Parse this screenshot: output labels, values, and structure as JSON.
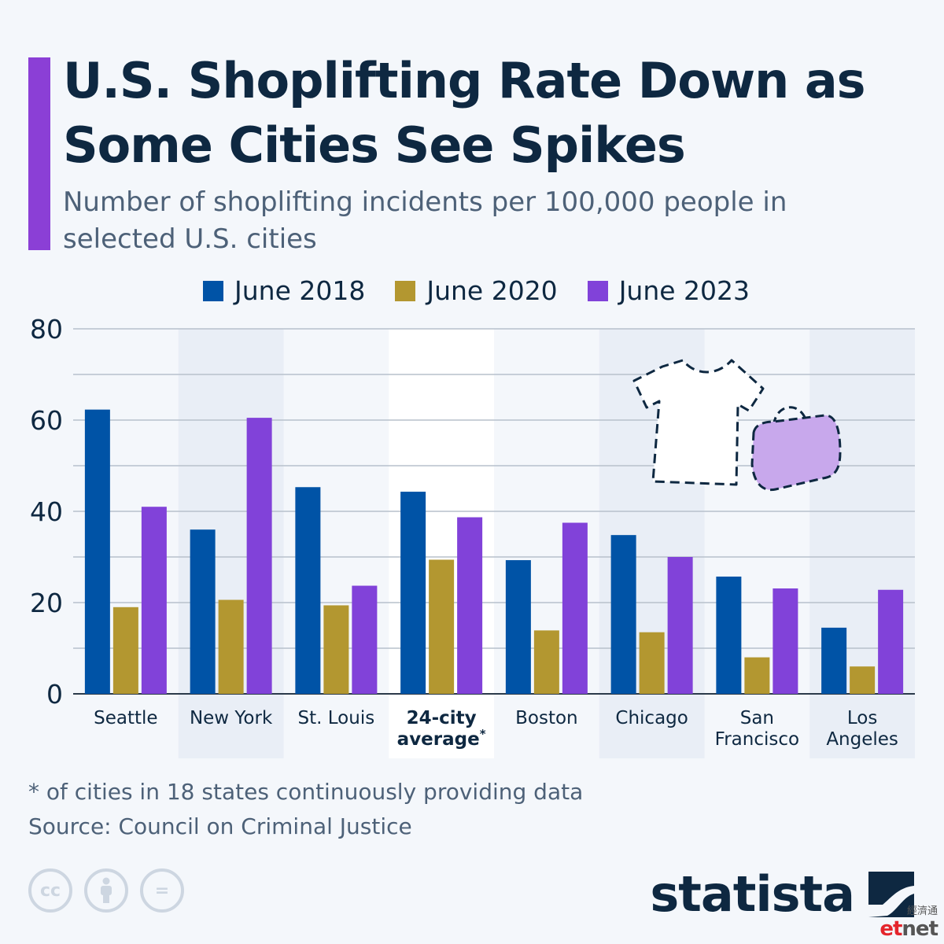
{
  "title": "U.S. Shoplifting Rate Down as Some Cities See Spikes",
  "subtitle": "Number of shoplifting incidents per 100,000 people in selected U.S. cities",
  "colors": {
    "accent": "#8b3fd6",
    "series": [
      "#0053a6",
      "#b39730",
      "#8142d9"
    ],
    "highlight_band": "#e9eef6",
    "avg_band": "#ffffff",
    "bag_fill": "#c8a8ec",
    "etnet_red": "#e4252c"
  },
  "chart_data": {
    "type": "bar",
    "categories": [
      "Seattle",
      "New York",
      "St. Louis",
      "24-city average",
      "Boston",
      "Chicago",
      "San Francisco",
      "Los Angeles"
    ],
    "category_label_lines": [
      [
        "Seattle"
      ],
      [
        "New York"
      ],
      [
        "St. Louis"
      ],
      [
        "24-city",
        "average*"
      ],
      [
        "Boston"
      ],
      [
        "Chicago"
      ],
      [
        "San",
        "Francisco"
      ],
      [
        "Los",
        "Angeles"
      ]
    ],
    "series": [
      {
        "name": "June 2018",
        "values": [
          62.3,
          36.0,
          45.3,
          44.3,
          29.3,
          34.8,
          25.7,
          14.5
        ]
      },
      {
        "name": "June 2020",
        "values": [
          19.0,
          20.6,
          19.4,
          29.4,
          13.9,
          13.5,
          8.0,
          6.0
        ]
      },
      {
        "name": "June 2023",
        "values": [
          41.0,
          60.5,
          23.7,
          38.7,
          37.5,
          30.0,
          23.1,
          22.8
        ]
      }
    ],
    "yticks": [
      0,
      20,
      40,
      60,
      80
    ],
    "ylim": [
      0,
      80
    ],
    "grid": true,
    "legend": "top-center",
    "banded_categories": [
      1,
      5,
      7
    ],
    "emphasized_category": 3
  },
  "footnote": "* of cities in 18 states continuously providing data",
  "source": "Source: Council on Criminal Justice",
  "license_icons": [
    {
      "name": "creative-commons-icon",
      "glyph": "cc"
    },
    {
      "name": "attribution-icon",
      "glyph": ""
    },
    {
      "name": "no-derivatives-icon",
      "glyph": "="
    }
  ],
  "brand": "statista",
  "watermark": {
    "cn": "經濟通",
    "et": "et",
    "net": "net"
  }
}
